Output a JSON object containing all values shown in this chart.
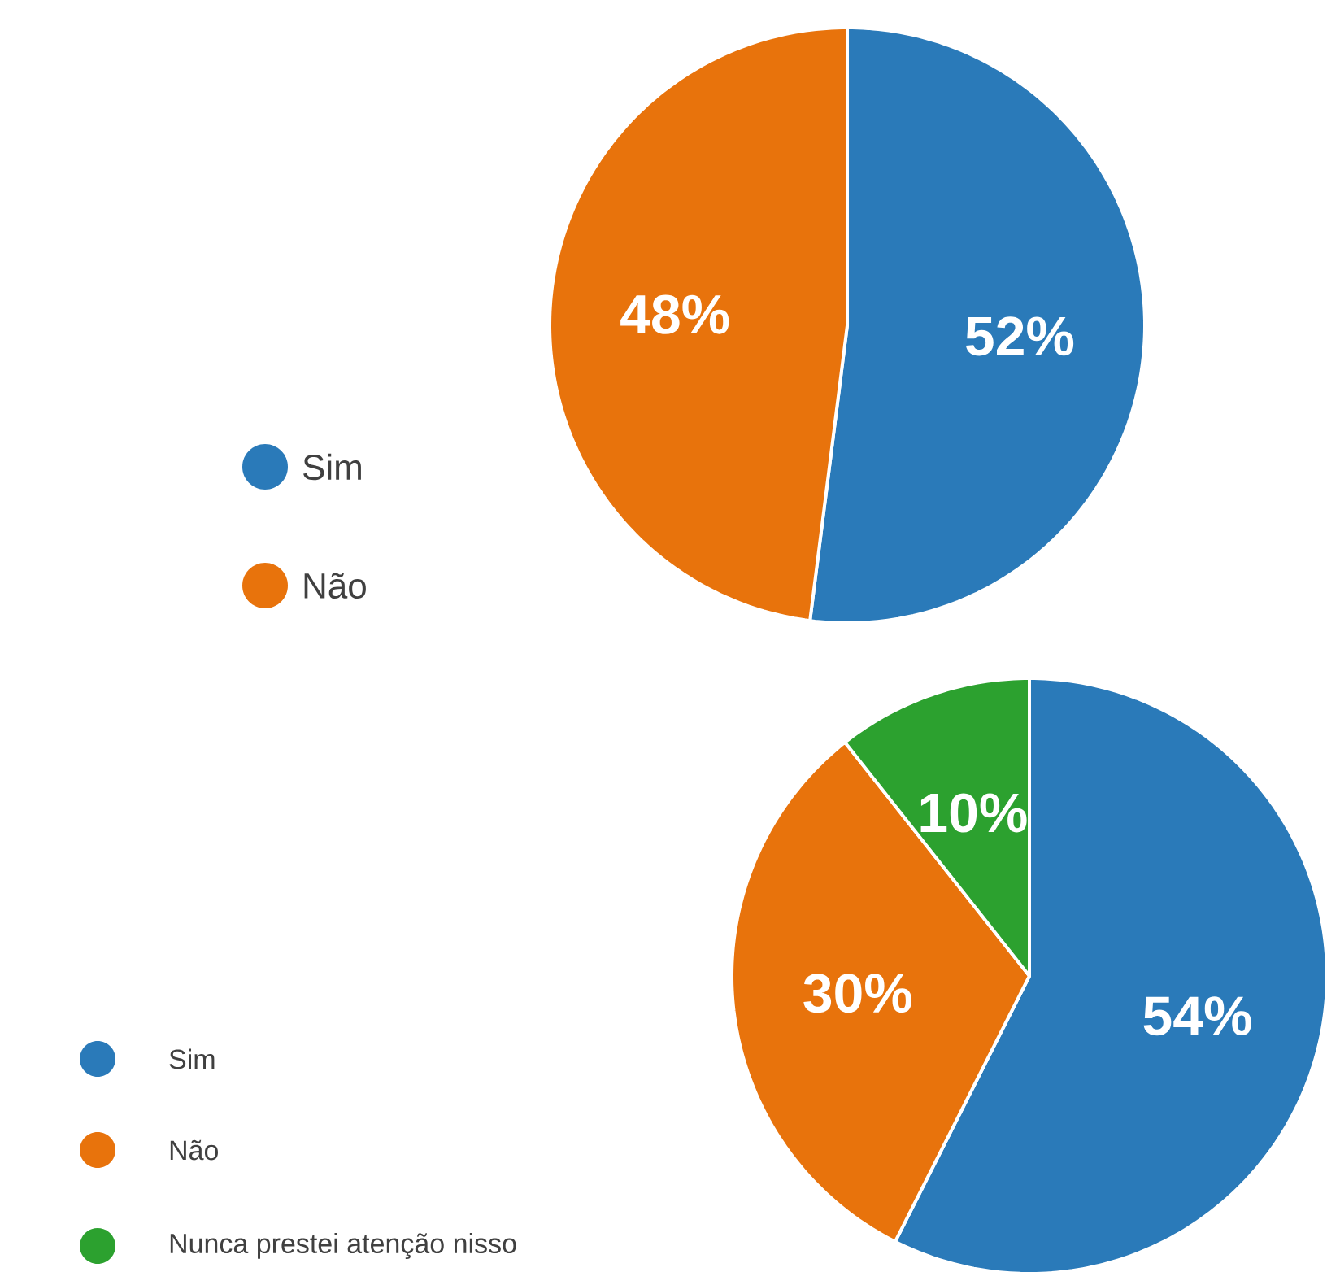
{
  "chart_data": [
    {
      "type": "pie",
      "categories": [
        "Sim",
        "Não"
      ],
      "values": [
        52,
        48
      ],
      "colors": [
        "#2a7ab9",
        "#e8730c"
      ],
      "value_labels": [
        "52%",
        "48%"
      ],
      "legend": "left"
    },
    {
      "type": "pie",
      "categories": [
        "Sim",
        "Não",
        "Nunca prestei atenção nisso"
      ],
      "values": [
        54,
        30,
        10
      ],
      "colors": [
        "#2a7ab9",
        "#e8730c",
        "#2ca12f"
      ],
      "value_labels": [
        "54%",
        "30%",
        "10%"
      ],
      "legend": "left"
    }
  ]
}
